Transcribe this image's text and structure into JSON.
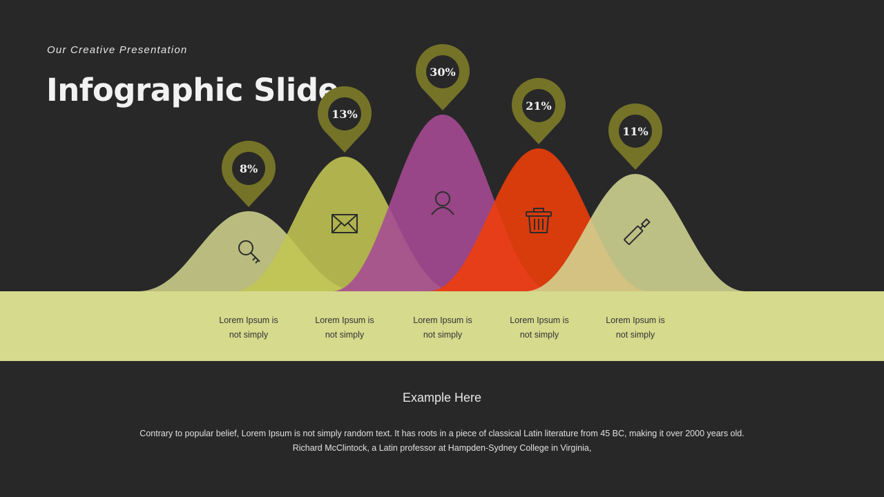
{
  "header": {
    "subtitle": "Our Creative Presentation",
    "title": "Infographic Slide"
  },
  "items": [
    {
      "percent": "8%",
      "value": 8,
      "label_line1": "Lorem Ipsum is",
      "label_line2": "not simply",
      "icon": "key-icon",
      "color": "#cdd08a"
    },
    {
      "percent": "13%",
      "value": 13,
      "label_line1": "Lorem Ipsum is",
      "label_line2": "not simply",
      "icon": "envelope-icon",
      "color": "#c2c552"
    },
    {
      "percent": "30%",
      "value": 30,
      "label_line1": "Lorem Ipsum is",
      "label_line2": "not simply",
      "icon": "user-icon",
      "color": "#a74a95"
    },
    {
      "percent": "21%",
      "value": 21,
      "label_line1": "Lorem Ipsum is",
      "label_line2": "not simply",
      "icon": "trash-icon",
      "color": "#f03d08"
    },
    {
      "percent": "11%",
      "value": 11,
      "label_line1": "Lorem Ipsum is",
      "label_line2": "not simply",
      "icon": "paint-roller-icon",
      "color": "#d2d592"
    }
  ],
  "pin_color": "#757328",
  "band_color": "#d5da8d",
  "footer": {
    "title": "Example Here",
    "body_line1": "Contrary to popular belief, Lorem Ipsum is not simply random text. It has roots in a piece of classical Latin literature from 45 BC, making it over 2000 years old.",
    "body_line2": "Richard McClintock, a Latin professor at Hampden-Sydney College in Virginia,"
  }
}
